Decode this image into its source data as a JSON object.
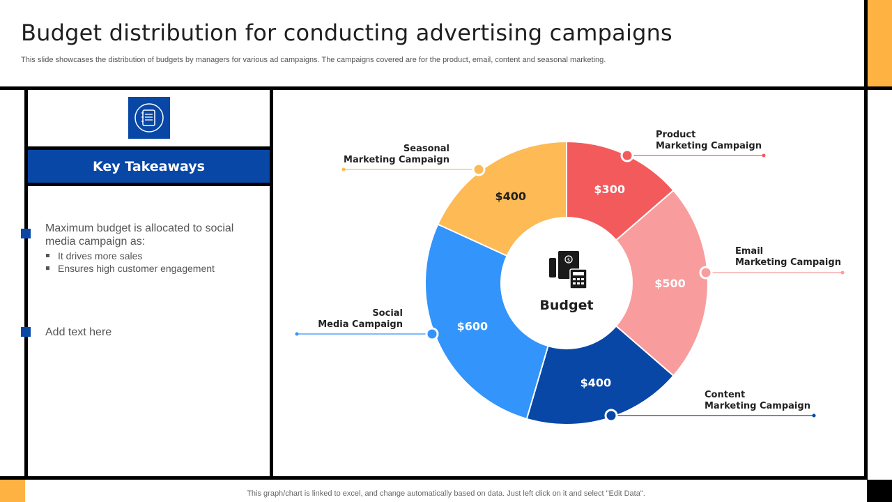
{
  "header": {
    "title": "Budget distribution for conducting advertising campaigns",
    "subtitle": "This slide showcases the distribution of budgets by managers for various ad campaigns. The campaigns covered are for the product, email, content and seasonal marketing."
  },
  "sidebar": {
    "icon": "notebook-icon",
    "heading": "Key Takeaways",
    "point1": "Maximum budget is allocated to social media campaign as:",
    "subpoints": [
      "It drives more sales",
      "Ensures high customer engagement"
    ],
    "point2": "Add text here"
  },
  "footer": {
    "note": "This graph/chart is linked to excel, and change automatically based on data. Just left click on it and select \"Edit Data\"."
  },
  "colors": {
    "accent": "#FDB241",
    "brand_blue": "#0847A6"
  },
  "chart_data": {
    "type": "pie",
    "center_label": "Budget",
    "center_icon": "receipt-calculator-icon",
    "slices": [
      {
        "name_line1": "Product",
        "name_line2": "Marketing Campaign",
        "label": "$300",
        "value": 300,
        "color": "#F35A5C",
        "label_color": "#ffffff"
      },
      {
        "name_line1": "Email",
        "name_line2": "Marketing Campaign",
        "label": "$500",
        "value": 500,
        "color": "#F89C9D",
        "label_color": "#ffffff"
      },
      {
        "name_line1": "Content",
        "name_line2": "Marketing Campaign",
        "label": "$400",
        "value": 400,
        "color": "#0847A6",
        "label_color": "#ffffff"
      },
      {
        "name_line1": "Social",
        "name_line2": "Media Campaign",
        "label": "$600",
        "value": 600,
        "color": "#3394FB",
        "label_color": "#ffffff"
      },
      {
        "name_line1": "Seasonal",
        "name_line2": "Marketing Campaign",
        "label": "$400",
        "value": 400,
        "color": "#FDBA55",
        "label_color": "#1f1f1f"
      }
    ]
  }
}
